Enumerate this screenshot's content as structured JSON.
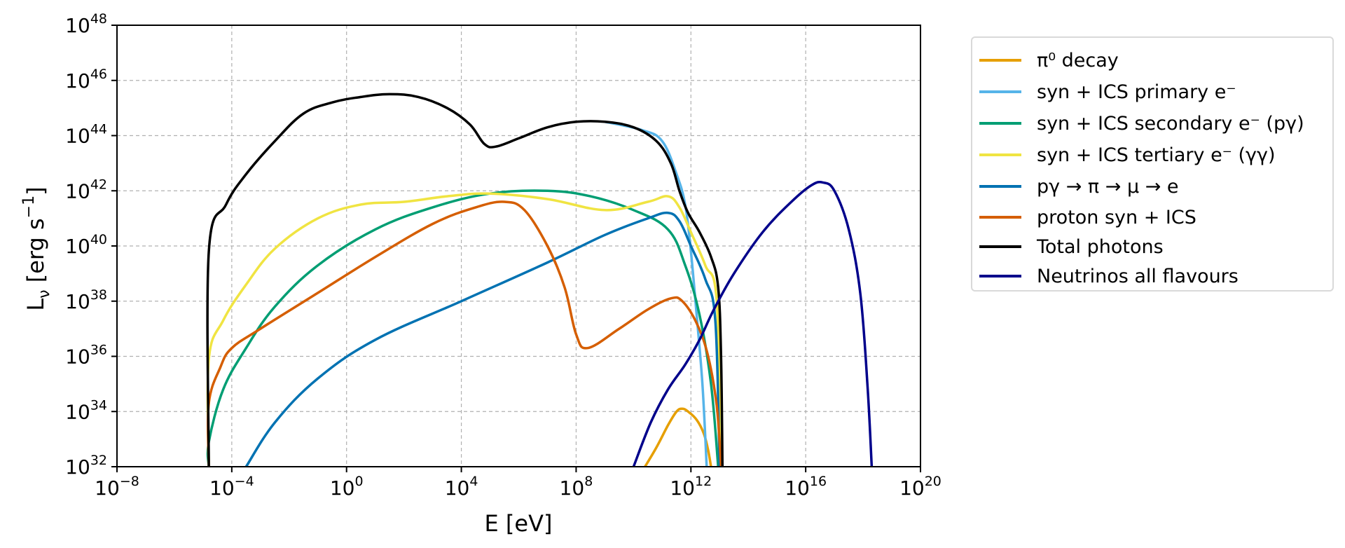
{
  "chart_data": {
    "type": "line",
    "title": "",
    "xlabel": "E [eV]",
    "ylabel": "L_ν [erg s^-1]",
    "xscale": "log",
    "yscale": "log",
    "xlim_log10": [
      -8,
      20
    ],
    "ylim_log10": [
      32,
      48
    ],
    "grid": true,
    "legend_position": "outside upper right",
    "x_ticks": [
      {
        "base": "10",
        "exp": "−8",
        "log": -8
      },
      {
        "base": "10",
        "exp": "−4",
        "log": -4
      },
      {
        "base": "10",
        "exp": "0",
        "log": 0
      },
      {
        "base": "10",
        "exp": "4",
        "log": 4
      },
      {
        "base": "10",
        "exp": "8",
        "log": 8
      },
      {
        "base": "10",
        "exp": "12",
        "log": 12
      },
      {
        "base": "10",
        "exp": "16",
        "log": 16
      },
      {
        "base": "10",
        "exp": "20",
        "log": 20
      }
    ],
    "y_ticks": [
      {
        "base": "10",
        "exp": "32",
        "log": 32
      },
      {
        "base": "10",
        "exp": "34",
        "log": 34
      },
      {
        "base": "10",
        "exp": "36",
        "log": 36
      },
      {
        "base": "10",
        "exp": "38",
        "log": 38
      },
      {
        "base": "10",
        "exp": "40",
        "log": 40
      },
      {
        "base": "10",
        "exp": "42",
        "log": 42
      },
      {
        "base": "10",
        "exp": "44",
        "log": 44
      },
      {
        "base": "10",
        "exp": "46",
        "log": 46
      },
      {
        "base": "10",
        "exp": "48",
        "log": 48
      }
    ],
    "series": [
      {
        "name": "π0 decay",
        "color": "#E69F00",
        "points_log10": [
          [
            10.4,
            32.0
          ],
          [
            10.8,
            32.7
          ],
          [
            11.2,
            33.5
          ],
          [
            11.5,
            34.0
          ],
          [
            11.7,
            34.1
          ],
          [
            11.9,
            34.0
          ],
          [
            12.2,
            33.7
          ],
          [
            12.45,
            33.2
          ],
          [
            12.6,
            32.6
          ],
          [
            12.7,
            32.0
          ]
        ]
      },
      {
        "name": "syn + ICS primary e−",
        "color": "#56B4E9",
        "points_log10": [
          [
            9.0,
            44.5
          ],
          [
            10.3,
            44.2
          ],
          [
            11.0,
            43.8
          ],
          [
            11.5,
            42.6
          ],
          [
            11.8,
            41.5
          ],
          [
            12.0,
            39.8
          ],
          [
            12.2,
            37.5
          ],
          [
            12.4,
            35.0
          ],
          [
            12.55,
            32.0
          ]
        ]
      },
      {
        "name": "syn + ICS secondary e− (pγ)",
        "color": "#009E73",
        "points_log10": [
          [
            -4.8,
            32.0
          ],
          [
            -4.8,
            32.9
          ],
          [
            -4.3,
            34.8
          ],
          [
            -3.5,
            36.3
          ],
          [
            -2.5,
            37.8
          ],
          [
            -1.0,
            39.3
          ],
          [
            1.0,
            40.6
          ],
          [
            3.0,
            41.4
          ],
          [
            5.0,
            41.9
          ],
          [
            7.0,
            42.0
          ],
          [
            8.5,
            41.8
          ],
          [
            10.0,
            41.3
          ],
          [
            11.2,
            40.6
          ],
          [
            11.8,
            39.3
          ],
          [
            12.3,
            37.5
          ],
          [
            12.7,
            35.0
          ],
          [
            12.95,
            32.0
          ]
        ]
      },
      {
        "name": "syn + ICS tertiary e− (γγ)",
        "color": "#F0E442",
        "points_log10": [
          [
            -4.8,
            32.0
          ],
          [
            -4.8,
            35.9
          ],
          [
            -4.3,
            37.3
          ],
          [
            -3.5,
            38.6
          ],
          [
            -2.5,
            39.9
          ],
          [
            -1.0,
            41.0
          ],
          [
            0.5,
            41.5
          ],
          [
            2.0,
            41.6
          ],
          [
            3.5,
            41.8
          ],
          [
            5.0,
            41.9
          ],
          [
            7.0,
            41.7
          ],
          [
            9.0,
            41.3
          ],
          [
            10.5,
            41.6
          ],
          [
            11.2,
            41.8
          ],
          [
            11.6,
            41.4
          ],
          [
            12.0,
            40.5
          ],
          [
            12.5,
            39.3
          ],
          [
            12.9,
            38.0
          ],
          [
            13.05,
            32.0
          ]
        ]
      },
      {
        "name": "pγ → π → μ → e",
        "color": "#0072B2",
        "points_log10": [
          [
            -3.5,
            32.0
          ],
          [
            -2.5,
            33.6
          ],
          [
            -1.0,
            35.2
          ],
          [
            1.0,
            36.6
          ],
          [
            4.0,
            38.0
          ],
          [
            7.0,
            39.4
          ],
          [
            9.0,
            40.4
          ],
          [
            10.5,
            41.0
          ],
          [
            11.2,
            41.2
          ],
          [
            11.6,
            40.9
          ],
          [
            12.0,
            40.0
          ],
          [
            12.5,
            38.8
          ],
          [
            12.85,
            37.3
          ],
          [
            13.0,
            32.0
          ]
        ]
      },
      {
        "name": "proton syn + ICS",
        "color": "#D55E00",
        "points_log10": [
          [
            -4.8,
            32.0
          ],
          [
            -4.8,
            34.3
          ],
          [
            -4.4,
            35.6
          ],
          [
            -4.0,
            36.3
          ],
          [
            -3.0,
            37.0
          ],
          [
            -1.0,
            38.3
          ],
          [
            1.0,
            39.6
          ],
          [
            3.0,
            40.8
          ],
          [
            4.5,
            41.4
          ],
          [
            5.5,
            41.6
          ],
          [
            6.2,
            41.3
          ],
          [
            7.0,
            40.0
          ],
          [
            7.6,
            38.5
          ],
          [
            8.0,
            36.8
          ],
          [
            8.4,
            36.3
          ],
          [
            9.5,
            37.0
          ],
          [
            10.5,
            37.7
          ],
          [
            11.3,
            38.1
          ],
          [
            11.7,
            38.0
          ],
          [
            12.2,
            37.2
          ],
          [
            12.6,
            36.0
          ],
          [
            12.9,
            34.2
          ],
          [
            13.05,
            32.0
          ]
        ]
      },
      {
        "name": "Total photons",
        "color": "#000000",
        "points_log10": [
          [
            -4.8,
            32.0
          ],
          [
            -4.8,
            39.8
          ],
          [
            -4.2,
            41.5
          ],
          [
            -3.5,
            42.6
          ],
          [
            -2.5,
            43.8
          ],
          [
            -1.5,
            44.8
          ],
          [
            -0.5,
            45.2
          ],
          [
            0.5,
            45.4
          ],
          [
            1.5,
            45.5
          ],
          [
            2.5,
            45.4
          ],
          [
            3.5,
            45.0
          ],
          [
            4.3,
            44.4
          ],
          [
            4.8,
            43.7
          ],
          [
            5.2,
            43.6
          ],
          [
            6.0,
            43.9
          ],
          [
            7.0,
            44.3
          ],
          [
            8.0,
            44.5
          ],
          [
            9.0,
            44.5
          ],
          [
            10.0,
            44.3
          ],
          [
            10.8,
            43.8
          ],
          [
            11.3,
            43.0
          ],
          [
            11.6,
            42.0
          ],
          [
            11.9,
            41.2
          ],
          [
            12.3,
            40.5
          ],
          [
            12.7,
            39.6
          ],
          [
            12.95,
            38.5
          ],
          [
            13.05,
            36.0
          ],
          [
            13.1,
            32.0
          ]
        ]
      },
      {
        "name": "Neutrinos all flavours",
        "color": "#00008B",
        "points_log10": [
          [
            10.0,
            32.0
          ],
          [
            10.6,
            33.6
          ],
          [
            11.2,
            34.8
          ],
          [
            11.8,
            35.7
          ],
          [
            12.3,
            36.6
          ],
          [
            12.8,
            37.7
          ],
          [
            13.5,
            39.0
          ],
          [
            14.5,
            40.5
          ],
          [
            15.5,
            41.6
          ],
          [
            16.2,
            42.2
          ],
          [
            16.6,
            42.3
          ],
          [
            17.0,
            42.0
          ],
          [
            17.5,
            40.6
          ],
          [
            17.9,
            38.3
          ],
          [
            18.15,
            35.0
          ],
          [
            18.3,
            32.0
          ]
        ]
      }
    ]
  },
  "legend": {
    "items": [
      {
        "label": "π⁰ decay",
        "color": "#E69F00"
      },
      {
        "label": "syn + ICS primary e⁻",
        "color": "#56B4E9"
      },
      {
        "label": "syn + ICS secondary e⁻  (pγ)",
        "color": "#009E73"
      },
      {
        "label": "syn + ICS tertiary e⁻  (γγ)",
        "color": "#F0E442"
      },
      {
        "label": "pγ → π → μ → e",
        "color": "#0072B2"
      },
      {
        "label": "proton syn + ICS",
        "color": "#D55E00"
      },
      {
        "label": "Total photons",
        "color": "#000000"
      },
      {
        "label": "Neutrinos all flavours",
        "color": "#00008B"
      }
    ]
  },
  "axes": {
    "xlabel": "E [eV]",
    "ylabel_main": "L",
    "ylabel_sub": "ν",
    "ylabel_rest": " [erg s",
    "ylabel_sup": "−1",
    "ylabel_end": "]"
  }
}
